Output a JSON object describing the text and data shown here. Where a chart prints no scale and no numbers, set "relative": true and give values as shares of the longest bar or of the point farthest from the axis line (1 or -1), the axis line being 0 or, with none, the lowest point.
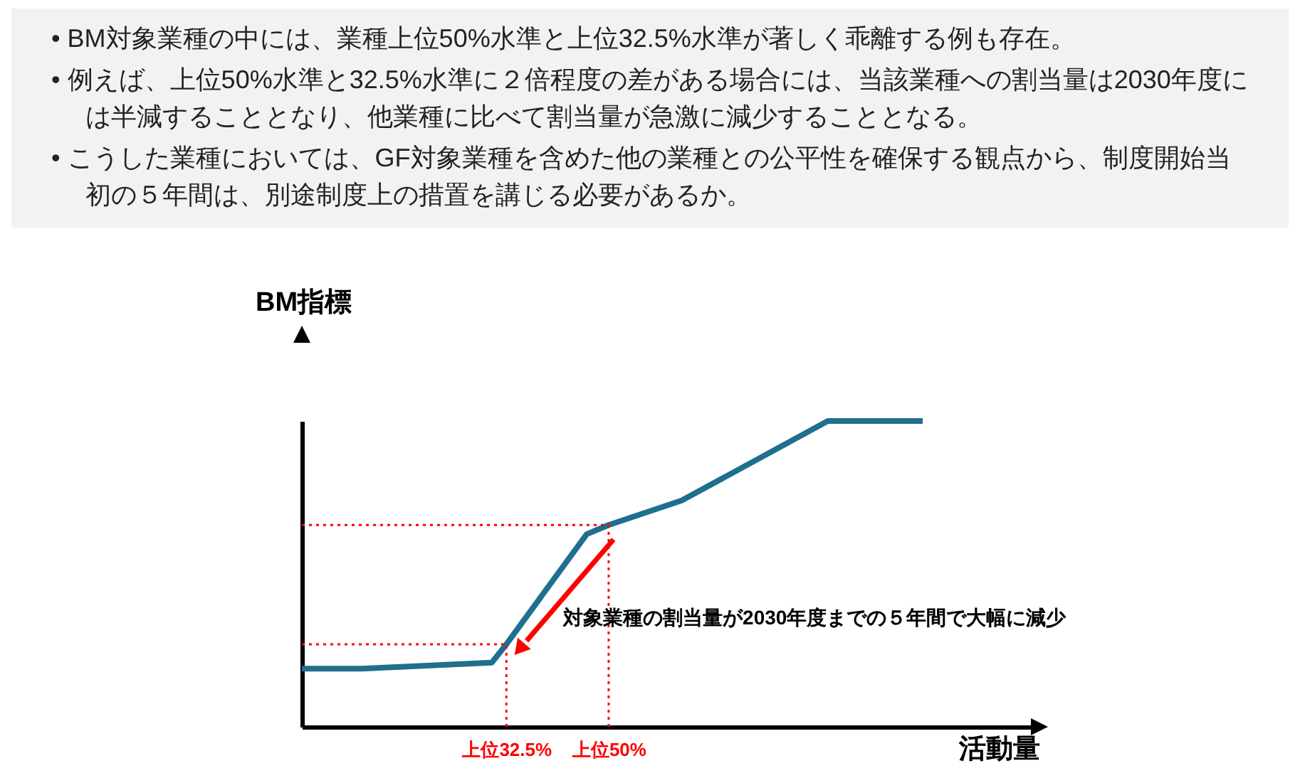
{
  "chart_data": {
    "type": "line",
    "relative": true,
    "xlabel": "活動量",
    "ylabel": "BM指標",
    "categories": [
      null,
      null,
      null,
      null,
      null,
      null,
      null,
      null,
      null,
      null,
      null,
      null,
      null,
      null,
      null,
      null,
      null,
      null,
      null,
      null,
      null,
      null,
      null,
      null,
      null,
      null,
      null,
      null,
      "上位32.5%",
      null,
      null,
      null,
      null,
      null,
      null,
      null,
      null,
      null,
      null,
      null,
      null,
      null,
      "上位50%",
      null,
      null,
      null,
      null,
      null,
      null,
      null,
      null,
      null,
      null,
      null,
      null,
      null,
      null,
      null,
      null,
      null,
      null,
      null,
      null,
      null,
      null,
      null,
      null,
      null,
      null,
      null,
      null,
      null,
      null,
      null,
      null,
      null,
      null,
      null,
      null,
      null,
      null,
      null,
      null,
      null,
      null,
      null,
      null,
      null,
      null,
      null,
      null,
      null,
      null,
      null,
      null,
      null,
      null,
      null,
      null,
      null,
      null
    ],
    "series": [
      {
        "color": "#1f6f8f",
        "values": [
          0.19,
          null,
          null,
          null,
          null,
          null,
          null,
          null,
          0.19,
          null,
          null,
          null,
          null,
          null,
          null,
          null,
          null,
          null,
          null,
          null,
          null,
          null,
          null,
          null,
          null,
          null,
          0.21,
          null,
          0.27,
          null,
          null,
          null,
          null,
          null,
          null,
          null,
          null,
          null,
          null,
          0.63,
          null,
          null,
          0.66,
          null,
          null,
          null,
          null,
          null,
          null,
          null,
          null,
          null,
          0.74,
          null,
          null,
          null,
          null,
          null,
          null,
          null,
          null,
          null,
          null,
          null,
          null,
          null,
          null,
          null,
          null,
          null,
          null,
          null,
          1,
          null,
          null,
          null,
          null,
          null,
          null,
          null,
          null,
          null,
          null,
          null,
          null,
          1,
          null,
          null,
          null,
          null,
          null,
          null,
          null,
          null,
          null,
          null,
          null,
          null,
          null,
          null,
          null
        ]
      }
    ],
    "grid": false,
    "marker": "none",
    "line_style": "solid",
    "ref_lines": [
      {
        "axis": "x",
        "value": "上位32.5%",
        "color": "#ff0000",
        "line_style": "dotted"
      },
      {
        "axis": "y",
        "value": 0.27,
        "color": "#ff0000",
        "line_style": "dotted"
      },
      {
        "axis": "x",
        "value": "上位50%",
        "color": "#ff0000",
        "line_style": "dotted"
      },
      {
        "axis": "y",
        "value": 0.66,
        "color": "#ff0000",
        "line_style": "dotted"
      }
    ],
    "annotations": [
      "• BM対象業種の中には、業種上位50%水準と上位32.5%水準が著しく乖離する例も存在。",
      "• 例えば、上位50%水準と32.5%水準に２倍程度の差がある場合には、当該業種への割当量は2030年度には半減することとなり、他業種に比べて割当量が急激に減少することとなる。",
      "• こうした業種においては、GF対象業種を含めた他の業種との公平性を確保する観点から、制度開始当初の５年間は、別途制度上の措置を講じる必要があるか。",
      "対象業種の割当量が2030年度までの５年間で大幅に減少"
    ]
  }
}
